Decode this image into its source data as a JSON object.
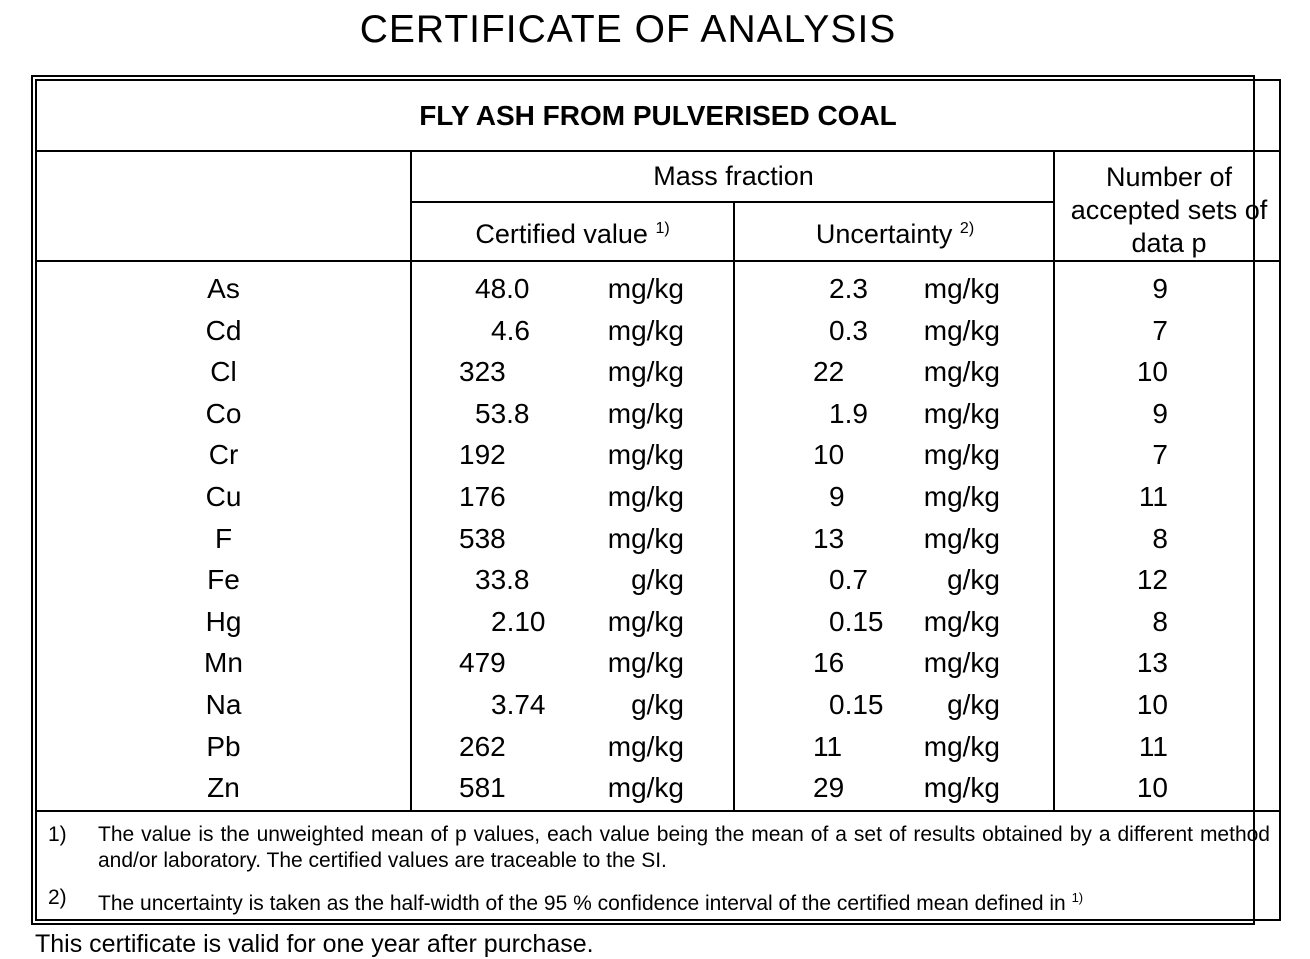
{
  "title": "CERTIFICATE OF ANALYSIS",
  "table": {
    "caption": "FLY ASH FROM PULVERISED COAL",
    "headers": {
      "mass_fraction": "Mass fraction",
      "certified_value": "Certified value",
      "certified_ref": "1)",
      "uncertainty": "Uncertainty",
      "uncertainty_ref": "2)",
      "number_sets": "Number of accepted sets of data p"
    },
    "rows": [
      {
        "element": "As",
        "cert_value": "48.0",
        "cert_unit": "mg/kg",
        "unc_value": "2.3",
        "unc_unit": "mg/kg",
        "sets": "9"
      },
      {
        "element": "Cd",
        "cert_value": "4.6",
        "cert_unit": "mg/kg",
        "unc_value": "0.3",
        "unc_unit": "mg/kg",
        "sets": "7"
      },
      {
        "element": "Cl",
        "cert_value": "323",
        "cert_unit": "mg/kg",
        "unc_value": "22",
        "unc_unit": "mg/kg",
        "sets": "10"
      },
      {
        "element": "Co",
        "cert_value": "53.8",
        "cert_unit": "mg/kg",
        "unc_value": "1.9",
        "unc_unit": "mg/kg",
        "sets": "9"
      },
      {
        "element": "Cr",
        "cert_value": "192",
        "cert_unit": "mg/kg",
        "unc_value": "10",
        "unc_unit": "mg/kg",
        "sets": "7"
      },
      {
        "element": "Cu",
        "cert_value": "176",
        "cert_unit": "mg/kg",
        "unc_value": "9",
        "unc_unit": "mg/kg",
        "sets": "11"
      },
      {
        "element": "F",
        "cert_value": "538",
        "cert_unit": "mg/kg",
        "unc_value": "13",
        "unc_unit": "mg/kg",
        "sets": "8"
      },
      {
        "element": "Fe",
        "cert_value": "33.8",
        "cert_unit": "g/kg",
        "unc_value": "0.7",
        "unc_unit": "g/kg",
        "sets": "12"
      },
      {
        "element": "Hg",
        "cert_value": "2.10",
        "cert_unit": "mg/kg",
        "unc_value": "0.15",
        "unc_unit": "mg/kg",
        "sets": "8"
      },
      {
        "element": "Mn",
        "cert_value": "479",
        "cert_unit": "mg/kg",
        "unc_value": "16",
        "unc_unit": "mg/kg",
        "sets": "13"
      },
      {
        "element": "Na",
        "cert_value": "3.74",
        "cert_unit": "g/kg",
        "unc_value": "0.15",
        "unc_unit": "g/kg",
        "sets": "10"
      },
      {
        "element": "Pb",
        "cert_value": "262",
        "cert_unit": "mg/kg",
        "unc_value": "11",
        "unc_unit": "mg/kg",
        "sets": "11"
      },
      {
        "element": "Zn",
        "cert_value": "581",
        "cert_unit": "mg/kg",
        "unc_value": "29",
        "unc_unit": "mg/kg",
        "sets": "10"
      }
    ]
  },
  "footnotes": [
    {
      "num": "1)",
      "text": "The value is the unweighted mean of p values, each value being the mean of a set of results obtained by a different method and/or laboratory. The certified values are traceable to the SI.",
      "ref": ""
    },
    {
      "num": "2)",
      "text": "The uncertainty is taken as the half-width of the 95 % confidence interval of the certified mean defined in ",
      "ref": "1)"
    }
  ],
  "bottom_text": "This certificate is valid for one year after purchase."
}
